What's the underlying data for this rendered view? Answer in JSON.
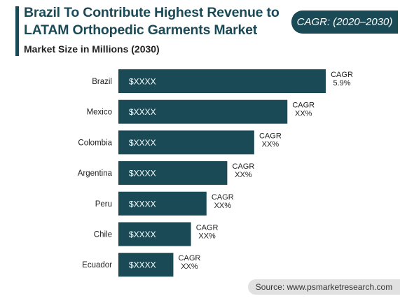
{
  "header": {
    "title": "Brazil To Contribute Highest Revenue to LATAM Orthopedic Garments Market",
    "subtitle": "Market Size in Millions (2030)",
    "cagr_badge": "CAGR: (2020–2030)"
  },
  "footer": {
    "source": "Source: www.psmarketresearch.com"
  },
  "colors": {
    "bar": "#1b4a57",
    "title": "#1b4a57",
    "badge": "#1b4a57",
    "source_bg": "#e1e1e1"
  },
  "chart_data": {
    "type": "bar",
    "orientation": "horizontal",
    "categories": [
      "Brazil",
      "Mexico",
      "Colombia",
      "Argentina",
      "Peru",
      "Chile",
      "Ecuador"
    ],
    "values": [
      100,
      81.5,
      65.5,
      52.5,
      42.5,
      35,
      26.5
    ],
    "value_labels": [
      "$XXXX",
      "$XXXX",
      "$XXXX",
      "$XXXX",
      "$XXXX",
      "$XXXX",
      "$XXXX"
    ],
    "cagr_labels": [
      [
        "CAGR",
        "5.9%"
      ],
      [
        "CAGR",
        "XX%"
      ],
      [
        "CAGR",
        "XX%"
      ],
      [
        "CAGR",
        "XX%"
      ],
      [
        "CAGR",
        "XX%"
      ],
      [
        "CAGR",
        "XX%"
      ],
      [
        "CAGR",
        "XX%"
      ]
    ],
    "xlim": [
      0,
      100
    ],
    "grid": false,
    "legend": "none"
  }
}
